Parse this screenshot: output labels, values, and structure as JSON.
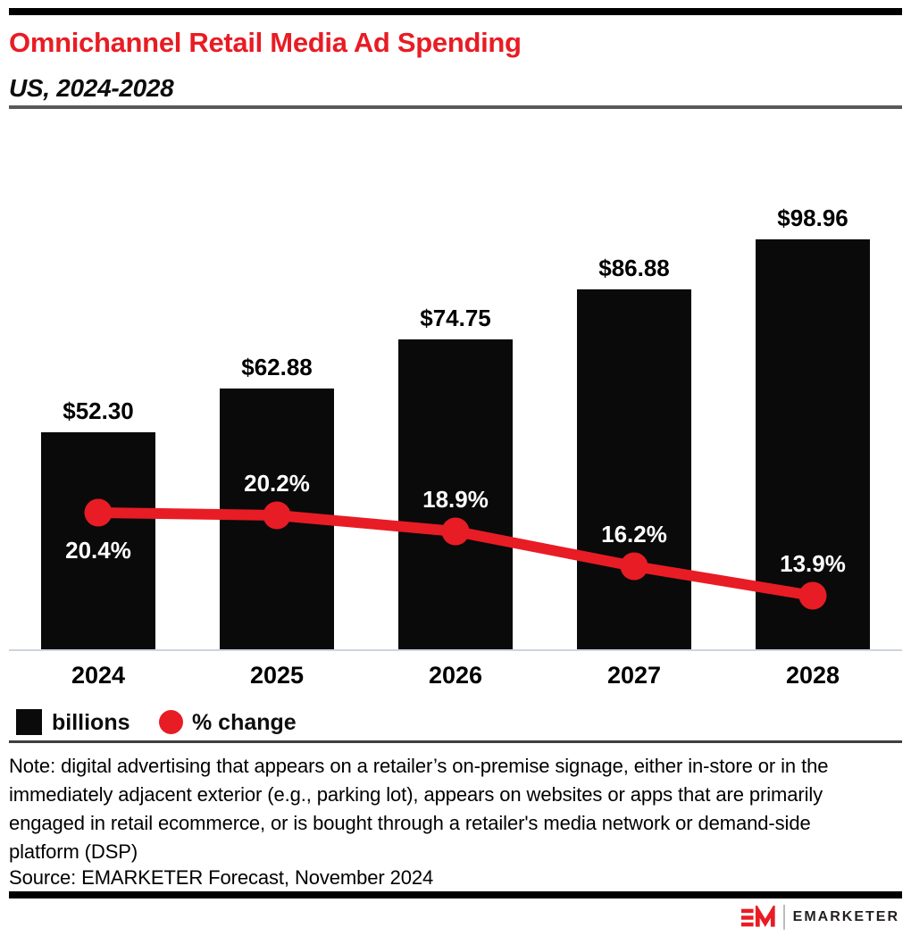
{
  "header": {
    "title": "Omnichannel Retail Media Ad Spending",
    "subtitle": "US, 2024-2028"
  },
  "chart_data": {
    "type": "combo",
    "title": "Omnichannel Retail Media Ad Spending",
    "subtitle": "US, 2024-2028",
    "categories": [
      "2024",
      "2025",
      "2026",
      "2027",
      "2028"
    ],
    "series": [
      {
        "name": "billions",
        "type": "bar",
        "unit": "US$ billions",
        "values": [
          52.3,
          62.88,
          74.75,
          86.88,
          98.96
        ],
        "labels": [
          "$52.30",
          "$62.88",
          "$74.75",
          "$86.88",
          "$98.96"
        ],
        "color": "#0a0a0a"
      },
      {
        "name": "% change",
        "type": "line",
        "unit": "%",
        "values": [
          20.4,
          20.2,
          18.9,
          16.2,
          13.9
        ],
        "labels": [
          "20.4%",
          "20.2%",
          "16.2%",
          "13.9%"
        ],
        "labels_full": [
          "20.4%",
          "20.2%",
          "18.9%",
          "16.2%",
          "13.9%"
        ],
        "color": "#e81c24"
      }
    ],
    "grid": false,
    "value_labels_shown": true,
    "legend_position": "bottom-left"
  },
  "legend": {
    "items": [
      {
        "label": "billions",
        "swatch": "square",
        "color": "#0a0a0a"
      },
      {
        "label": "% change",
        "swatch": "circle",
        "color": "#e81c24"
      }
    ]
  },
  "note": "Note: digital advertising that appears on a retailer’s on-premise signage, either in-store or in the immediately adjacent exterior (e.g., parking lot), appears on websites or apps that are primarily engaged in retail ecommerce, or is bought through a retailer's media network or demand-side platform (DSP)",
  "source": "Source: EMARKETER Forecast, November 2024",
  "footer": {
    "logo_monogram": "EM",
    "logo_text": "EMARKETER"
  },
  "colors": {
    "accent_red": "#e81c24",
    "bar_black": "#0a0a0a",
    "axis_line": "#ccd4df",
    "rule_gray": "#58595b"
  }
}
